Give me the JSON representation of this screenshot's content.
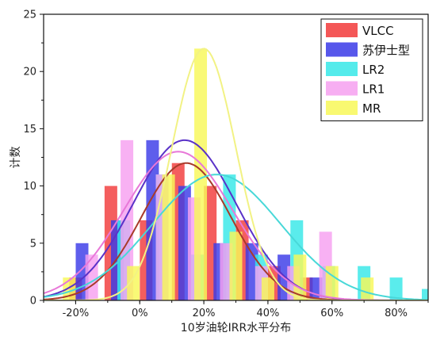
{
  "chart_data": {
    "type": "bar",
    "title": "",
    "xlabel": "10岁油轮IRR水平分布",
    "ylabel": "计数",
    "xlim": [
      -0.3,
      0.9
    ],
    "ylim": [
      0,
      25
    ],
    "x_ticks": [
      -0.2,
      0,
      0.2,
      0.4,
      0.6,
      0.8
    ],
    "x_tick_labels": [
      "-20%",
      "0%",
      "20%",
      "40%",
      "60%",
      "80%"
    ],
    "y_ticks": [
      0,
      5,
      10,
      15,
      20,
      25
    ],
    "y_tick_labels": [
      "0",
      "5",
      "10",
      "15",
      "20",
      "25"
    ],
    "grid": false,
    "legend_position": "top-right",
    "overlay": "overlapping histograms with fitted normal curves",
    "series": [
      {
        "name": "VLCC",
        "color": "#f23a3a",
        "curve_color": "#a83a2a",
        "bins": [
          {
            "x": -0.2,
            "count": 2
          },
          {
            "x": -0.09,
            "count": 10
          },
          {
            "x": 0.02,
            "count": 7
          },
          {
            "x": 0.12,
            "count": 12
          },
          {
            "x": 0.22,
            "count": 10
          },
          {
            "x": 0.32,
            "count": 7
          },
          {
            "x": 0.42,
            "count": 3
          },
          {
            "x": 0.52,
            "count": 2
          }
        ],
        "fit": {
          "mean": 0.145,
          "sd": 0.14,
          "peak": 12
        }
      },
      {
        "name": "苏伊士型",
        "color": "#3a3ae8",
        "curve_color": "#5a32c8",
        "bins": [
          {
            "x": -0.18,
            "count": 5
          },
          {
            "x": -0.07,
            "count": 7
          },
          {
            "x": 0.04,
            "count": 14
          },
          {
            "x": 0.14,
            "count": 10
          },
          {
            "x": 0.25,
            "count": 5
          },
          {
            "x": 0.35,
            "count": 5
          },
          {
            "x": 0.45,
            "count": 4
          },
          {
            "x": 0.55,
            "count": 2
          }
        ],
        "fit": {
          "mean": 0.14,
          "sd": 0.16,
          "peak": 14
        }
      },
      {
        "name": "LR2",
        "color": "#36e8e8",
        "curve_color": "#48d8d8",
        "bins": [
          {
            "x": -0.05,
            "count": 7
          },
          {
            "x": 0.07,
            "count": 11
          },
          {
            "x": 0.18,
            "count": 4
          },
          {
            "x": 0.28,
            "count": 11
          },
          {
            "x": 0.38,
            "count": 4
          },
          {
            "x": 0.49,
            "count": 7
          },
          {
            "x": 0.59,
            "count": 3
          },
          {
            "x": 0.7,
            "count": 3
          },
          {
            "x": 0.8,
            "count": 2
          },
          {
            "x": 0.9,
            "count": 1
          }
        ],
        "fit": {
          "mean": 0.24,
          "sd": 0.2,
          "peak": 11
        }
      },
      {
        "name": "LR1",
        "color": "#f6a0f0",
        "curve_color": "#e878d8",
        "bins": [
          {
            "x": -0.15,
            "count": 4
          },
          {
            "x": -0.04,
            "count": 14
          },
          {
            "x": 0.07,
            "count": 11
          },
          {
            "x": 0.17,
            "count": 9
          },
          {
            "x": 0.27,
            "count": 5
          },
          {
            "x": 0.38,
            "count": 3
          },
          {
            "x": 0.48,
            "count": 3
          },
          {
            "x": 0.58,
            "count": 6
          }
        ],
        "fit": {
          "mean": 0.12,
          "sd": 0.17,
          "peak": 13
        }
      },
      {
        "name": "MR",
        "color": "#f8f858",
        "curve_color": "#f2f284",
        "bins": [
          {
            "x": -0.22,
            "count": 2
          },
          {
            "x": -0.02,
            "count": 3
          },
          {
            "x": 0.09,
            "count": 11
          },
          {
            "x": 0.19,
            "count": 22
          },
          {
            "x": 0.3,
            "count": 6
          },
          {
            "x": 0.4,
            "count": 2
          },
          {
            "x": 0.5,
            "count": 4
          },
          {
            "x": 0.6,
            "count": 3
          },
          {
            "x": 0.71,
            "count": 2
          }
        ],
        "fit": {
          "mean": 0.2,
          "sd": 0.1,
          "peak": 22
        }
      }
    ]
  }
}
